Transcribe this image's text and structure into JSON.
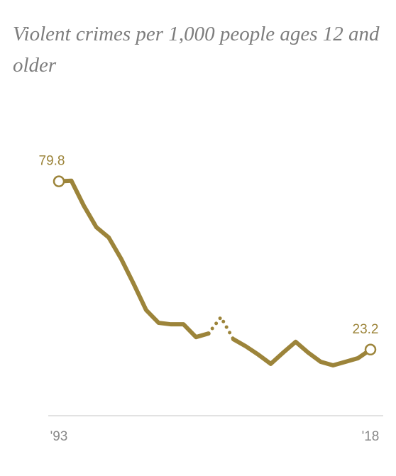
{
  "chart_data": {
    "type": "line",
    "title": "Violent crimes per 1,000 people ages 12 and older",
    "x": [
      1993,
      1994,
      1995,
      1996,
      1997,
      1998,
      1999,
      2000,
      2001,
      2002,
      2003,
      2004,
      2005,
      2006,
      2007,
      2008,
      2009,
      2010,
      2011,
      2012,
      2013,
      2014,
      2015,
      2016,
      2017,
      2018
    ],
    "series": [
      {
        "color": "#9c843a",
        "values": [
          79.8,
          80.0,
          71.6,
          64.4,
          60.9,
          53.7,
          45.3,
          36.5,
          32.2,
          31.7,
          31.7,
          27.4,
          28.6,
          34.1,
          26.7,
          24.3,
          21.5,
          18.4,
          22.2,
          25.8,
          22.2,
          19.1,
          17.9,
          19.1,
          20.3,
          23.2
        ]
      }
    ],
    "dotted_x": [
      2006
    ],
    "xlim": [
      1993,
      2018
    ],
    "xticks": [
      {
        "value": 1993,
        "label": "'93"
      },
      {
        "value": 2018,
        "label": "'18"
      }
    ],
    "ylim": [
      0,
      100
    ]
  }
}
